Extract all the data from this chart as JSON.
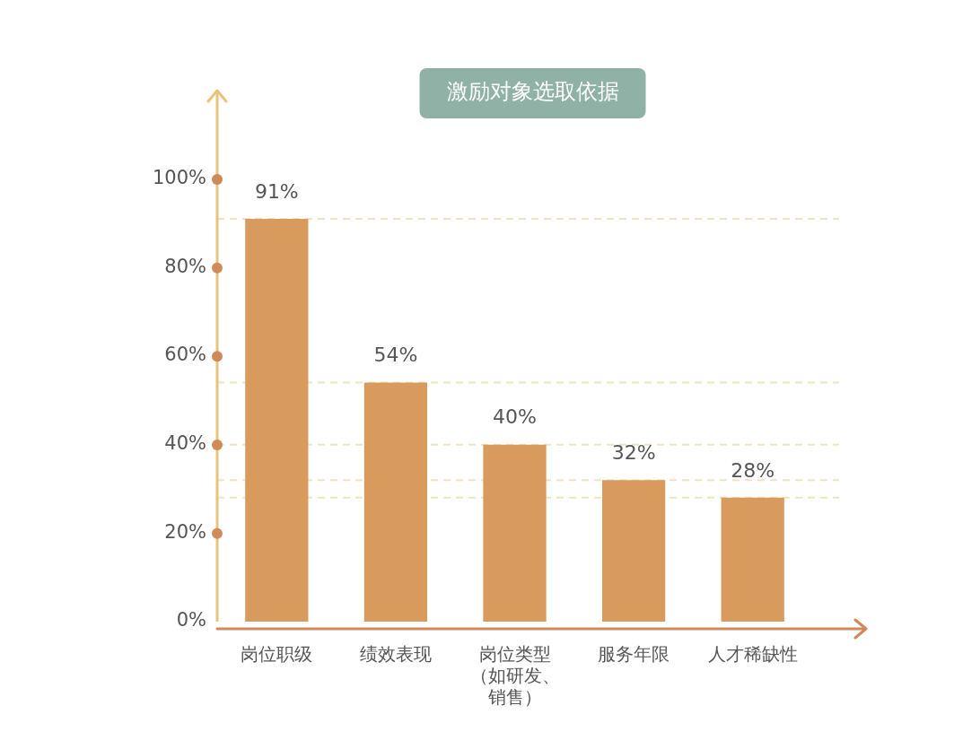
{
  "chart_data": {
    "type": "bar",
    "title": "激励对象选取依据",
    "categories": [
      "岗位职级",
      "绩效表现",
      "岗位类型（如研发、销售）",
      "服务年限",
      "人才稀缺性"
    ],
    "values": [
      91,
      54,
      40,
      32,
      28
    ],
    "value_labels": [
      "91%",
      "54%",
      "40%",
      "32%",
      "28%"
    ],
    "color": "#d99a5e",
    "ylim": [
      0,
      120
    ],
    "yticks": [
      {
        "value": 0,
        "label": "0%"
      },
      {
        "value": 20,
        "label": "20%"
      },
      {
        "value": 40,
        "label": "40%"
      },
      {
        "value": 60,
        "label": "60%"
      },
      {
        "value": 80,
        "label": "80%"
      },
      {
        "value": 100,
        "label": "100%"
      }
    ],
    "ref_lines": [
      {
        "axis": "y",
        "value": 91,
        "color": "#efe3c4",
        "line_style": "dashed"
      },
      {
        "axis": "y",
        "value": 54,
        "color": "#efe3c4",
        "line_style": "dashed"
      },
      {
        "axis": "y",
        "value": 40,
        "color": "#efe3c4",
        "line_style": "dashed"
      },
      {
        "axis": "y",
        "value": 32,
        "color": "#efe3c4",
        "line_style": "dashed"
      },
      {
        "axis": "y",
        "value": 28,
        "color": "#efe3c4",
        "line_style": "dashed"
      }
    ],
    "grid": false,
    "legend": false
  }
}
